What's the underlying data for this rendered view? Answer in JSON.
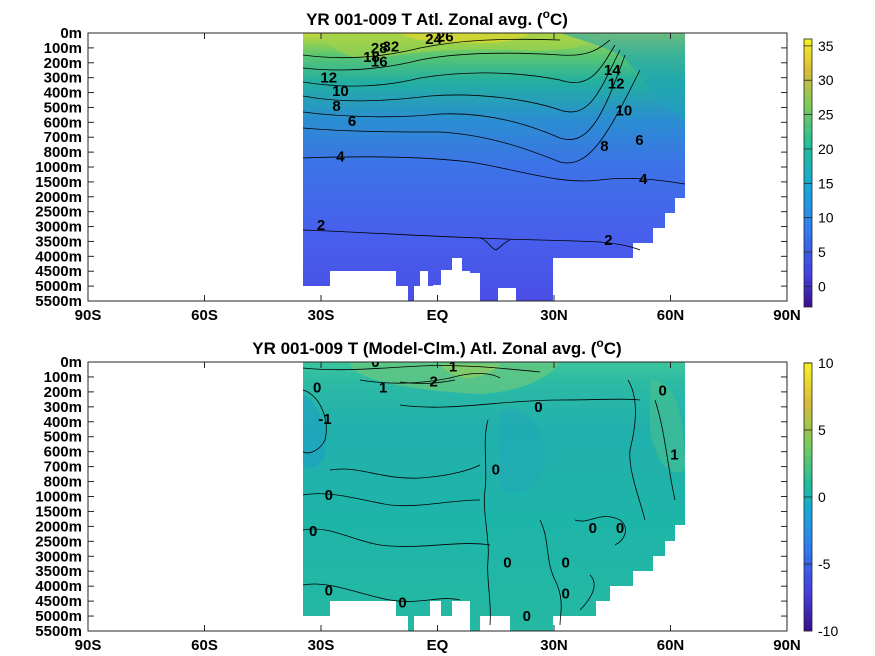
{
  "chart_data": [
    {
      "type": "heatmap",
      "title": "YR 001-009 T Atl. Zonal avg. (",
      "title_unit_sup": "o",
      "title_unit_tail": "C)",
      "x_ticks": [
        "90S",
        "60S",
        "30S",
        "EQ",
        "30N",
        "60N",
        "90N"
      ],
      "xlim": [
        -90,
        90
      ],
      "y_ticks": [
        "0m",
        "100m",
        "200m",
        "300m",
        "400m",
        "500m",
        "600m",
        "700m",
        "800m",
        "1000m",
        "1500m",
        "2000m",
        "2500m",
        "3000m",
        "3500m",
        "4000m",
        "4500m",
        "5000m",
        "5500m"
      ],
      "colorbar": {
        "ticks": [
          "35",
          "30",
          "25",
          "20",
          "15",
          "10",
          "5",
          "0"
        ],
        "range": [
          -3,
          36
        ]
      },
      "data_extent_lat": [
        -35,
        63
      ],
      "contour_labels": [
        {
          "text": "26",
          "lat": 2,
          "depth_idx": 0.25
        },
        {
          "text": "24",
          "lat": -1,
          "depth_idx": 0.4
        },
        {
          "text": "32",
          "lat": -12,
          "depth_idx": 0.9
        },
        {
          "text": "28",
          "lat": -15,
          "depth_idx": 1.0
        },
        {
          "text": "18",
          "lat": -17,
          "depth_idx": 1.6
        },
        {
          "text": "16",
          "lat": -15,
          "depth_idx": 1.9
        },
        {
          "text": "12",
          "lat": -28,
          "depth_idx": 3.0
        },
        {
          "text": "10",
          "lat": -25,
          "depth_idx": 3.9
        },
        {
          "text": "8",
          "lat": -26,
          "depth_idx": 4.9
        },
        {
          "text": "6",
          "lat": -22,
          "depth_idx": 5.9
        },
        {
          "text": "4",
          "lat": -25,
          "depth_idx": 8.3
        },
        {
          "text": "2",
          "lat": -30,
          "depth_idx": 12.9
        },
        {
          "text": "14",
          "lat": 45,
          "depth_idx": 2.5
        },
        {
          "text": "12",
          "lat": 46,
          "depth_idx": 3.4
        },
        {
          "text": "10",
          "lat": 48,
          "depth_idx": 5.2
        },
        {
          "text": "8",
          "lat": 43,
          "depth_idx": 7.6
        },
        {
          "text": "6",
          "lat": 52,
          "depth_idx": 7.2
        },
        {
          "text": "4",
          "lat": 53,
          "depth_idx": 9.8
        },
        {
          "text": "2",
          "lat": 44,
          "depth_idx": 13.9
        }
      ]
    },
    {
      "type": "heatmap",
      "title": "YR 001-009 T (Model-Clm.) Atl. Zonal avg. (",
      "title_unit_sup": "o",
      "title_unit_tail": "C)",
      "x_ticks": [
        "90S",
        "60S",
        "30S",
        "EQ",
        "30N",
        "60N",
        "90N"
      ],
      "xlim": [
        -90,
        90
      ],
      "y_ticks": [
        "0m",
        "100m",
        "200m",
        "300m",
        "400m",
        "500m",
        "600m",
        "700m",
        "800m",
        "1000m",
        "1500m",
        "2000m",
        "2500m",
        "3000m",
        "3500m",
        "4000m",
        "4500m",
        "5000m",
        "5500m"
      ],
      "colorbar": {
        "ticks": [
          "10",
          "5",
          "0",
          "-5",
          "-10"
        ],
        "range": [
          -10,
          10
        ]
      },
      "data_extent_lat": [
        -35,
        63
      ],
      "contour_labels": [
        {
          "text": "0",
          "lat": -16,
          "depth_idx": 0
        },
        {
          "text": "1",
          "lat": 4,
          "depth_idx": 0.3
        },
        {
          "text": "1",
          "lat": -14,
          "depth_idx": 1.7
        },
        {
          "text": "2",
          "lat": -1,
          "depth_idx": 1.3
        },
        {
          "text": "0",
          "lat": -31,
          "depth_idx": 1.7
        },
        {
          "text": "-1",
          "lat": -29,
          "depth_idx": 3.8
        },
        {
          "text": "0",
          "lat": 26,
          "depth_idx": 3.0
        },
        {
          "text": "0",
          "lat": 58,
          "depth_idx": 1.9
        },
        {
          "text": "1",
          "lat": 61,
          "depth_idx": 6.2
        },
        {
          "text": "0",
          "lat": 15,
          "depth_idx": 7.2
        },
        {
          "text": "0",
          "lat": -28,
          "depth_idx": 8.9
        },
        {
          "text": "0",
          "lat": -32,
          "depth_idx": 11.3
        },
        {
          "text": "0",
          "lat": 40,
          "depth_idx": 11.1
        },
        {
          "text": "0",
          "lat": 47,
          "depth_idx": 11.1
        },
        {
          "text": "0",
          "lat": 18,
          "depth_idx": 13.4
        },
        {
          "text": "0",
          "lat": 33,
          "depth_idx": 13.4
        },
        {
          "text": "0",
          "lat": -28,
          "depth_idx": 15.3
        },
        {
          "text": "0",
          "lat": -9,
          "depth_idx": 16.1
        },
        {
          "text": "0",
          "lat": 33,
          "depth_idx": 15.5
        },
        {
          "text": "0",
          "lat": 23,
          "depth_idx": 17.0
        }
      ]
    }
  ]
}
